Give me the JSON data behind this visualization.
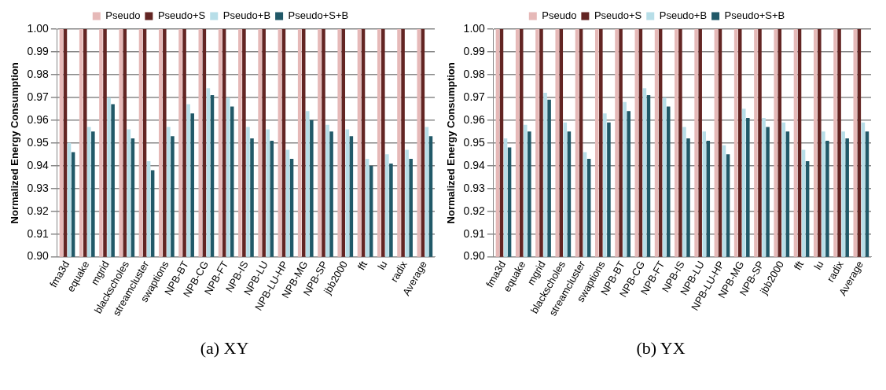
{
  "chart_data": [
    {
      "type": "bar",
      "ylabel": "Normalized Energy Consumption",
      "annotations": [
        "(a) XY"
      ],
      "categories": [
        "fma3d",
        "equake",
        "mgrid",
        "blackscholes",
        "streamcluster",
        "swaptions",
        "NPB-BT",
        "NPB-CG",
        "NPB-FT",
        "NPB-IS",
        "NPB-LU",
        "NPB-LU-HP",
        "NPB-MG",
        "NPB-SP",
        "jbb2000",
        "fft",
        "lu",
        "radix",
        "Average"
      ],
      "ylim": [
        0.9,
        1.0
      ],
      "yticks": [
        {
          "value": 0.9,
          "label": "0.90"
        },
        {
          "value": 0.91,
          "label": "0.91"
        },
        {
          "value": 0.92,
          "label": "0.92"
        },
        {
          "value": 0.93,
          "label": "0.93"
        },
        {
          "value": 0.94,
          "label": "0.94"
        },
        {
          "value": 0.95,
          "label": "0.95"
        },
        {
          "value": 0.96,
          "label": "0.96"
        },
        {
          "value": 0.97,
          "label": "0.97"
        },
        {
          "value": 0.98,
          "label": "0.98"
        },
        {
          "value": 0.99,
          "label": "0.99"
        },
        {
          "value": 1.0,
          "label": "1.00"
        }
      ],
      "grid": "y",
      "legend": "top",
      "series": [
        {
          "name": "Pseudo",
          "color": "#e6b9b8",
          "values": [
            1,
            1,
            1,
            1,
            1,
            1,
            1,
            1,
            1,
            1,
            1,
            1,
            1,
            1,
            1,
            1,
            1,
            1,
            1
          ]
        },
        {
          "name": "Pseudo+S",
          "color": "#632523",
          "values": [
            1,
            1,
            1,
            1,
            1,
            1,
            1,
            1,
            1,
            1,
            1,
            1,
            1,
            1,
            1,
            1,
            1,
            1,
            1
          ]
        },
        {
          "name": "Pseudo+B",
          "color": "#b7dee8",
          "values": [
            0.95,
            0.957,
            0.97,
            0.956,
            0.942,
            0.957,
            0.967,
            0.974,
            0.97,
            0.957,
            0.956,
            0.947,
            0.964,
            0.958,
            0.956,
            0.943,
            0.945,
            0.947,
            0.957
          ]
        },
        {
          "name": "Pseudo+S+B",
          "color": "#215968",
          "values": [
            0.946,
            0.955,
            0.967,
            0.952,
            0.938,
            0.953,
            0.963,
            0.971,
            0.966,
            0.952,
            0.951,
            0.943,
            0.96,
            0.955,
            0.953,
            0.94,
            0.941,
            0.943,
            0.953
          ]
        }
      ]
    },
    {
      "type": "bar",
      "ylabel": "Normalized Energy Consumption",
      "annotations": [
        "(b) YX"
      ],
      "categories": [
        "fma3d",
        "equake",
        "mgrid",
        "blackscholes",
        "streamcluster",
        "swaptions",
        "NPB-BT",
        "NPB-CG",
        "NPB-FT",
        "NPB-IS",
        "NPB-LU",
        "NPB-LU-HP",
        "NPB-MG",
        "NPB-SP",
        "jbb2000",
        "fft",
        "lu",
        "radix",
        "Average"
      ],
      "ylim": [
        0.9,
        1.0
      ],
      "yticks": [
        {
          "value": 0.9,
          "label": "0.90"
        },
        {
          "value": 0.91,
          "label": "0.91"
        },
        {
          "value": 0.92,
          "label": "0.92"
        },
        {
          "value": 0.93,
          "label": "0.93"
        },
        {
          "value": 0.94,
          "label": "0.94"
        },
        {
          "value": 0.95,
          "label": "0.95"
        },
        {
          "value": 0.96,
          "label": "0.96"
        },
        {
          "value": 0.97,
          "label": "0.97"
        },
        {
          "value": 0.98,
          "label": "0.98"
        },
        {
          "value": 0.99,
          "label": "0.99"
        },
        {
          "value": 1.0,
          "label": "1.00"
        }
      ],
      "grid": "y",
      "legend": "top",
      "series": [
        {
          "name": "Pseudo",
          "color": "#e6b9b8",
          "values": [
            1,
            1,
            1,
            1,
            1,
            1,
            1,
            1,
            1,
            1,
            1,
            1,
            1,
            1,
            1,
            1,
            1,
            1,
            1
          ]
        },
        {
          "name": "Pseudo+S",
          "color": "#632523",
          "values": [
            1,
            1,
            1,
            1,
            1,
            1,
            1,
            1,
            1,
            1,
            1,
            1,
            1,
            1,
            1,
            1,
            1,
            1,
            1
          ]
        },
        {
          "name": "Pseudo+B",
          "color": "#b7dee8",
          "values": [
            0.952,
            0.958,
            0.972,
            0.959,
            0.946,
            0.963,
            0.968,
            0.974,
            0.97,
            0.957,
            0.955,
            0.949,
            0.965,
            0.961,
            0.959,
            0.947,
            0.955,
            0.955,
            0.959
          ]
        },
        {
          "name": "Pseudo+S+B",
          "color": "#215968",
          "values": [
            0.948,
            0.955,
            0.969,
            0.955,
            0.943,
            0.959,
            0.964,
            0.971,
            0.966,
            0.952,
            0.951,
            0.945,
            0.961,
            0.957,
            0.955,
            0.942,
            0.951,
            0.952,
            0.955
          ]
        }
      ]
    }
  ]
}
